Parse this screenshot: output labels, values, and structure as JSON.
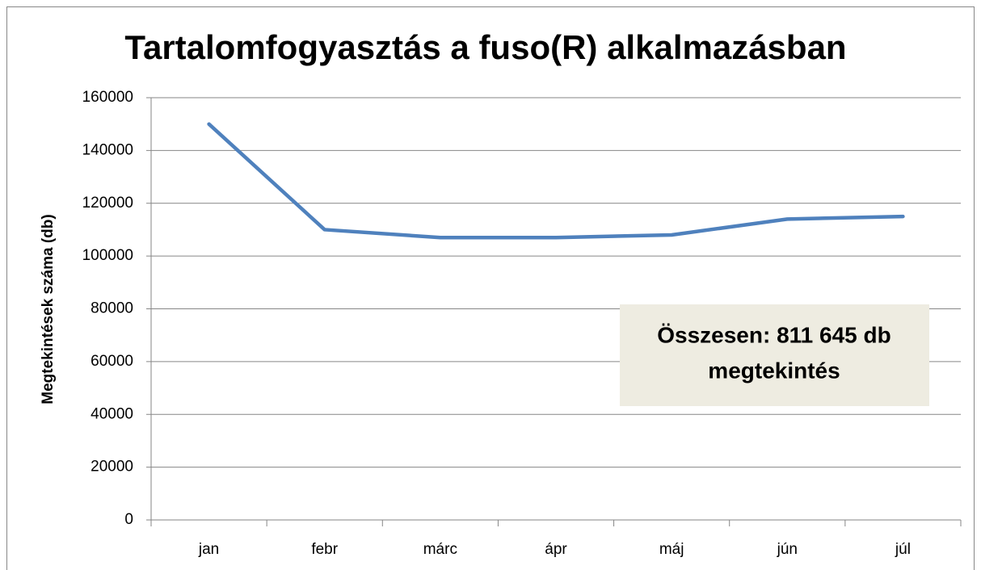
{
  "chart_data": {
    "type": "line",
    "title": "Tartalomfogyasztás a fuso(R) alkalmazásban",
    "y_label": "Megtekintések száma (db)",
    "categories": [
      "jan",
      "febr",
      "márc",
      "ápr",
      "máj",
      "jún",
      "júl"
    ],
    "series": [
      {
        "name": "Megtekintések",
        "color": "#4f81bd",
        "values": [
          150000,
          110000,
          107000,
          107000,
          108000,
          114000,
          115000
        ]
      }
    ],
    "ylim": [
      0,
      160000
    ],
    "yticks": [
      0,
      20000,
      40000,
      60000,
      80000,
      100000,
      120000,
      140000,
      160000
    ],
    "grid": true,
    "legend": false,
    "annotation": [
      "Összesen: 811 645 db",
      "megtekintés"
    ]
  }
}
